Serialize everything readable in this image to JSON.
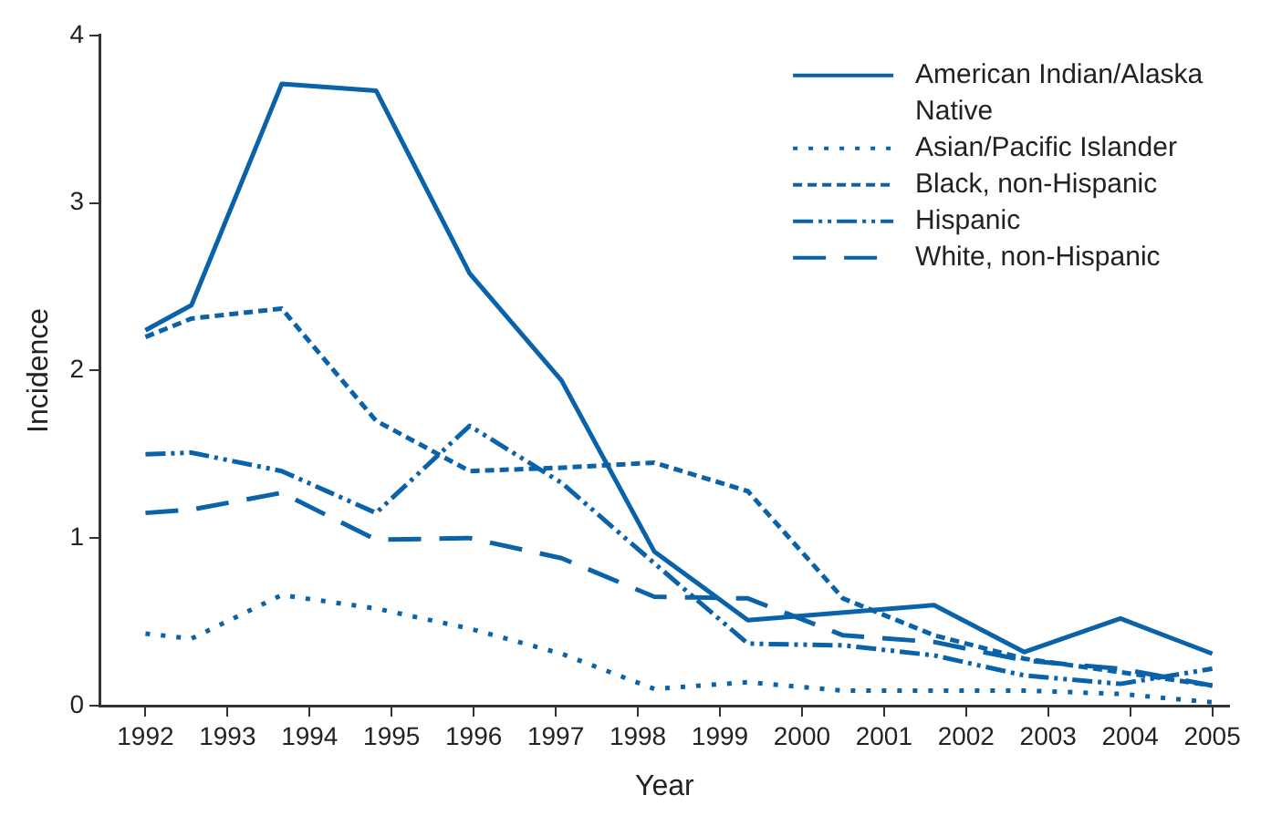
{
  "chart_data": {
    "type": "line",
    "xlabel": "Year",
    "ylabel": "Incidence",
    "xlim": [
      1991.45,
      2005.2
    ],
    "xticks": [
      1992,
      1993,
      1994,
      1995,
      1996,
      1997,
      1998,
      1999,
      2000,
      2001,
      2002,
      2003,
      2004,
      2005
    ],
    "ylim": [
      0,
      4
    ],
    "yticks": [
      0,
      1,
      2,
      3,
      4
    ],
    "grid": false,
    "legend": "top right",
    "marker": "none",
    "series": [
      {
        "name": "American Indian/Alaska Native",
        "color": "#0a62a8",
        "line_style": "solid",
        "x": [
          1992,
          1992.56,
          1993.66,
          1994.81,
          1995.95,
          1997.07,
          1998.2,
          1999.34,
          2001.61,
          2002.71,
          2003.88,
          2005
        ],
        "values": [
          2.24,
          2.39,
          3.71,
          3.67,
          2.58,
          1.94,
          0.92,
          0.51,
          0.6,
          0.32,
          0.52,
          0.31
        ]
      },
      {
        "name": "Asian/Pacific Islander",
        "color": "#0a62a8",
        "line_style": "dotted",
        "x": [
          1992,
          1992.56,
          1993.66,
          1994.81,
          1995.95,
          1997.07,
          1998.2,
          1999.34,
          2000.5,
          2001.61,
          2002.71,
          2003.88,
          2005
        ],
        "values": [
          0.43,
          0.4,
          0.66,
          0.58,
          0.46,
          0.31,
          0.1,
          0.14,
          0.09,
          0.09,
          0.09,
          0.07,
          0.02
        ]
      },
      {
        "name": "Black, non-Hispanic",
        "color": "#0a62a8",
        "line_style": "dashed",
        "x": [
          1992,
          1992.56,
          1993.66,
          1994.81,
          1995.95,
          1997.07,
          1998.2,
          1999.34,
          2000.5,
          2001.61,
          2002.71,
          2003.88,
          2005
        ],
        "values": [
          2.2,
          2.31,
          2.37,
          1.7,
          1.4,
          1.42,
          1.45,
          1.28,
          0.64,
          0.42,
          0.28,
          0.2,
          0.12
        ]
      },
      {
        "name": "Hispanic",
        "color": "#0a62a8",
        "line_style": "dashdotdot",
        "x": [
          1992,
          1992.56,
          1993.66,
          1994.81,
          1995.95,
          1997.07,
          1998.2,
          1999.34,
          2000.5,
          2001.61,
          2002.71,
          2003.88,
          2005
        ],
        "values": [
          1.5,
          1.51,
          1.4,
          1.15,
          1.67,
          1.33,
          0.85,
          0.37,
          0.36,
          0.3,
          0.18,
          0.13,
          0.22
        ]
      },
      {
        "name": "White, non-Hispanic",
        "color": "#0a62a8",
        "line_style": "longdash",
        "x": [
          1992,
          1992.56,
          1993.66,
          1994.81,
          1995.95,
          1997.07,
          1998.2,
          1999.34,
          2000.5,
          2001.61,
          2002.71,
          2003.88,
          2005
        ],
        "values": [
          1.15,
          1.17,
          1.27,
          0.99,
          1.0,
          0.88,
          0.65,
          0.64,
          0.42,
          0.38,
          0.27,
          0.22,
          0.12
        ]
      }
    ]
  }
}
